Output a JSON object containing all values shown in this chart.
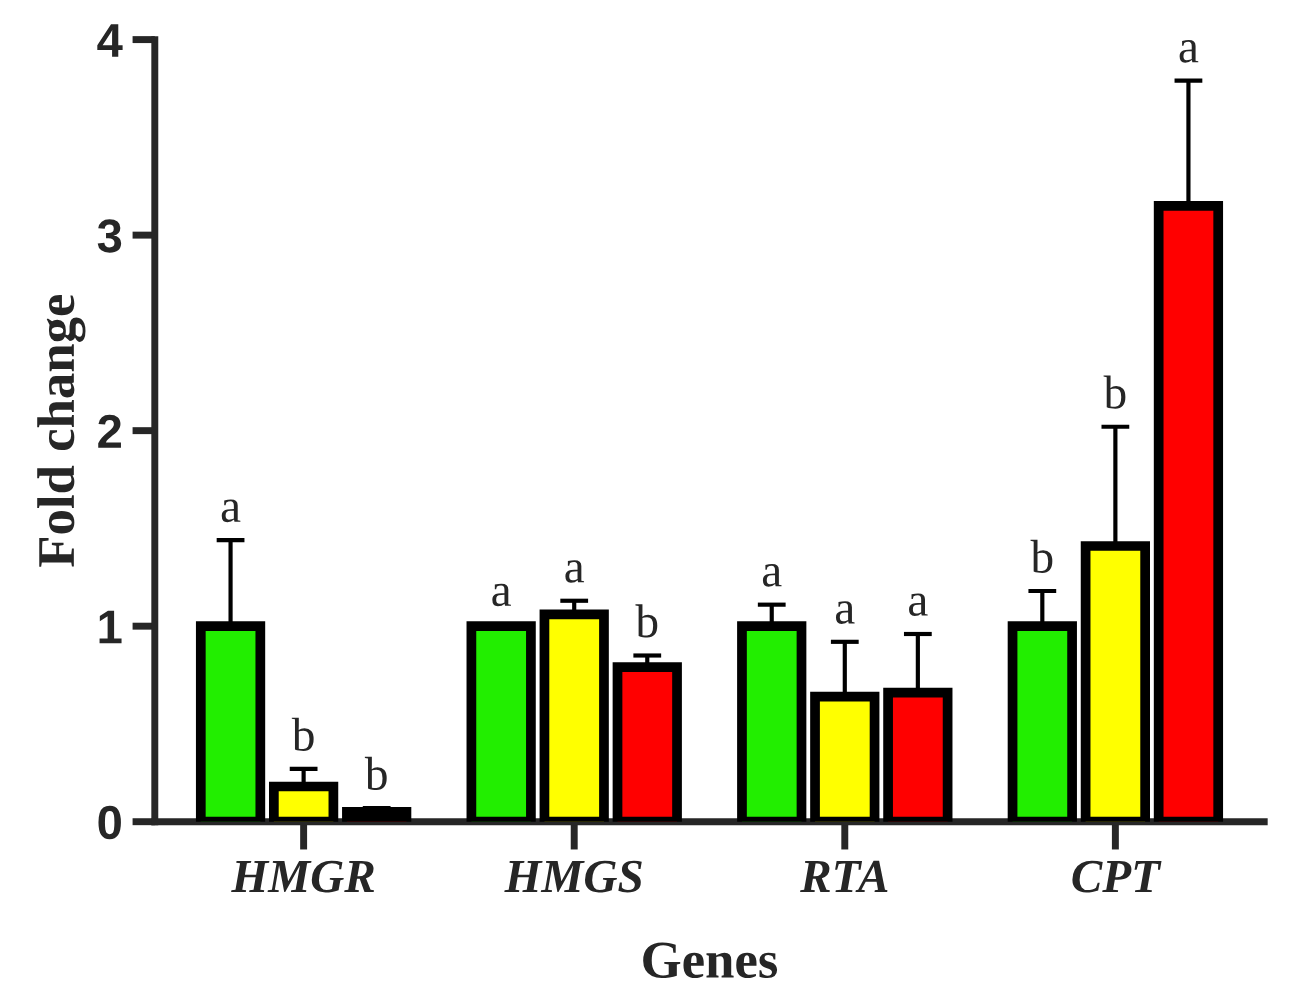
{
  "chart_data": {
    "type": "bar",
    "xlabel": "Genes",
    "ylabel": "Fold change",
    "categories": [
      "HMGR",
      "HMGS",
      "RTA",
      "CPT"
    ],
    "series": [
      {
        "color": "#22ee00",
        "values": [
          1.0,
          1.0,
          1.0,
          1.0
        ],
        "errors": [
          [
            1.0,
            1.44
          ],
          [
            1.0,
            1.01
          ],
          [
            1.0,
            1.11
          ],
          [
            1.0,
            1.18
          ]
        ],
        "value_labels": [
          "a",
          "a",
          "a",
          "b"
        ]
      },
      {
        "color": "#ffff00",
        "values": [
          0.18,
          1.06,
          0.64,
          1.41
        ],
        "errors": [
          [
            0.18,
            0.27
          ],
          [
            1.06,
            1.13
          ],
          [
            0.64,
            0.92
          ],
          [
            1.41,
            2.02
          ]
        ],
        "value_labels": [
          "b",
          "a",
          "a",
          "b"
        ]
      },
      {
        "color": "#ff0000",
        "values": [
          0.05,
          0.79,
          0.66,
          3.15
        ],
        "errors": [
          [
            0.05,
            0.07
          ],
          [
            0.79,
            0.85
          ],
          [
            0.66,
            0.96
          ],
          [
            3.15,
            3.79
          ]
        ],
        "value_labels": [
          "b",
          "b",
          "a",
          "a"
        ]
      }
    ],
    "ylim": [
      0,
      4
    ],
    "yticks": [
      0,
      1,
      2,
      3,
      4
    ],
    "grid": false,
    "legend": false
  }
}
